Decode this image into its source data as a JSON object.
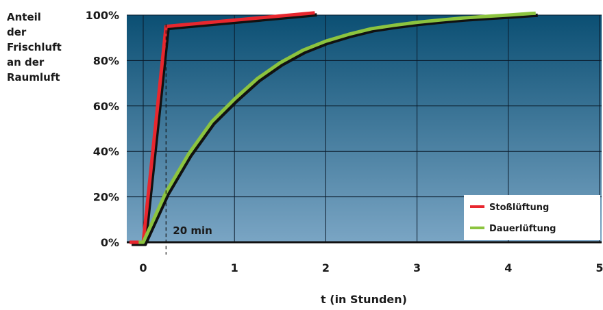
{
  "chart_data": {
    "type": "line",
    "title": "",
    "ylabel_lines": [
      "Anteil",
      "der",
      "Frischluft",
      "an der",
      "Raumluft"
    ],
    "xlabel": "t (in Stunden)",
    "xlim": [
      -0.15,
      5
    ],
    "ylim": [
      0,
      100
    ],
    "x_ticks": [
      0,
      1,
      2,
      3,
      4,
      5
    ],
    "x_tick_labels": [
      "0",
      "1",
      "2",
      "3",
      "4",
      "5"
    ],
    "y_ticks": [
      0,
      20,
      40,
      60,
      80,
      100
    ],
    "y_tick_labels": [
      "0%",
      "20%",
      "40%",
      "60%",
      "80%",
      "100%"
    ],
    "grid": true,
    "legend_position": "bottom-right",
    "background_gradient": [
      "#0b4f73",
      "#7aa5c4"
    ],
    "series": [
      {
        "name": "Stoßlüftung",
        "color": "#e8272e",
        "x": [
          -0.15,
          0.0,
          0.25,
          1.88
        ],
        "y": [
          0,
          0,
          95,
          101
        ]
      },
      {
        "name": "Dauerlüftung",
        "color": "#8cc43f",
        "x": [
          -0.05,
          0.0,
          0.25,
          0.5,
          0.75,
          1.0,
          1.25,
          1.5,
          1.75,
          2.0,
          2.25,
          2.5,
          2.75,
          3.0,
          3.25,
          3.5,
          3.75,
          4.0,
          4.25,
          4.3
        ],
        "y": [
          0,
          0,
          22,
          39,
          53,
          63,
          72,
          79,
          84.5,
          88.5,
          91.5,
          94,
          95.5,
          96.8,
          97.8,
          98.7,
          99.4,
          100,
          100.7,
          100.8
        ]
      }
    ],
    "annotations": [
      {
        "text": "20 min",
        "x": 0.25
      }
    ]
  }
}
